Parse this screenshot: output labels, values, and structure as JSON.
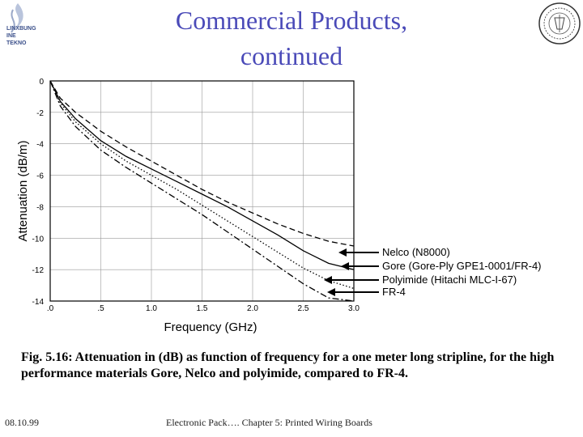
{
  "slide": {
    "title_line1": "Commercial Products,",
    "title_line2": "continued",
    "logo_left_lines": [
      "LINXBUNG",
      "INE",
      "TEKNO"
    ],
    "caption": "Fig. 5.16: Attenuation in (dB) as function of frequency for a one meter long stripline, for the high performance materials Gore, Nelco and polyimide, compared to FR-4.",
    "footer_date": "08.10.99",
    "footer_title": "Electronic Pack….   Chapter 5: Printed Wiring Boards",
    "title_color": "#4a4ab8"
  },
  "chart_data": {
    "type": "line",
    "xlabel": "Frequency (GHz)",
    "ylabel": "Attenuation (dB/m)",
    "xlim": [
      0,
      3.0
    ],
    "ylim": [
      -14,
      0
    ],
    "x_ticks": [
      ".0",
      ".5",
      "1.0",
      "1.5",
      "2.0",
      "2.5",
      "3.0"
    ],
    "y_ticks": [
      "0",
      "-2",
      "-4",
      "-6",
      "-8",
      "-10",
      "-12",
      "-14"
    ],
    "grid": true,
    "x": [
      0.0,
      0.1,
      0.25,
      0.5,
      0.75,
      1.0,
      1.25,
      1.5,
      1.75,
      2.0,
      2.25,
      2.5,
      2.75,
      3.0
    ],
    "series": [
      {
        "name": "Nelco (N8000)",
        "style": "dash",
        "values": [
          0.0,
          -1.1,
          -2.0,
          -3.2,
          -4.2,
          -5.1,
          -6.0,
          -6.9,
          -7.7,
          -8.4,
          -9.1,
          -9.7,
          -10.2,
          -10.5
        ]
      },
      {
        "name": "Gore (Gore-Ply GPE1-0001/FR-4)",
        "style": "solid",
        "values": [
          0.0,
          -1.3,
          -2.4,
          -3.8,
          -4.8,
          -5.6,
          -6.4,
          -7.2,
          -8.0,
          -8.9,
          -9.8,
          -10.8,
          -11.6,
          -12.0
        ]
      },
      {
        "name": "Polyimide (Hitachi MLC-I-67)",
        "style": "dot",
        "values": [
          0.0,
          -1.4,
          -2.6,
          -4.0,
          -5.1,
          -6.0,
          -6.9,
          -7.9,
          -8.9,
          -9.9,
          -10.9,
          -11.9,
          -12.7,
          -13.2
        ]
      },
      {
        "name": "FR-4",
        "style": "dashdot",
        "values": [
          0.0,
          -1.6,
          -2.9,
          -4.4,
          -5.5,
          -6.5,
          -7.5,
          -8.5,
          -9.6,
          -10.7,
          -11.8,
          -12.9,
          -13.8,
          -14.0
        ]
      }
    ]
  }
}
